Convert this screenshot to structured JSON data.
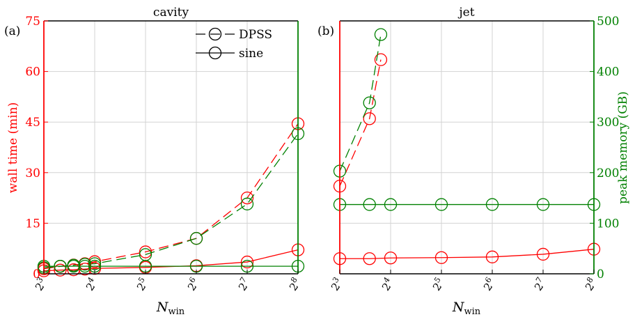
{
  "colors": {
    "wall_time": "#ff0000",
    "peak_memory": "#008000",
    "grid": "#d3d3d3",
    "axes": "#000000"
  },
  "chart_data": [
    {
      "type": "line",
      "panel_label": "(a)",
      "title": "cavity",
      "xlabel": "N",
      "xlabel_sub": "win",
      "ylabel_left": "wall time (min)",
      "ylabel_right": "",
      "xscale": "log2",
      "x_ticks": [
        8,
        16,
        32,
        64,
        128,
        256
      ],
      "x_tick_labels": [
        [
          "2",
          "3"
        ],
        [
          "2",
          "4"
        ],
        [
          "2",
          "5"
        ],
        [
          "2",
          "6"
        ],
        [
          "2",
          "7"
        ],
        [
          "2",
          "8"
        ]
      ],
      "ylim_left": [
        0,
        75
      ],
      "y_ticks_left": [
        0,
        15,
        30,
        45,
        60,
        75
      ],
      "y_tick_labels_left": [
        "0",
        "15",
        "30",
        "45",
        "60",
        "75"
      ],
      "ylim_right": [
        0,
        500
      ],
      "y_ticks_right": [],
      "y_tick_labels_right": [],
      "grid": true,
      "legend": {
        "position": "top-right",
        "entries": [
          {
            "label": "DPSS",
            "style": "dashed"
          },
          {
            "label": "sine",
            "style": "solid"
          }
        ]
      },
      "series": [
        {
          "metric": "wall_time",
          "method": "DPSS",
          "style": "dashed",
          "axis": "left",
          "x": [
            8,
            10,
            12,
            14,
            16,
            32,
            64,
            128,
            256
          ],
          "y": [
            1.5,
            2.2,
            2.6,
            3.0,
            3.6,
            6.5,
            10.5,
            22.5,
            44.5
          ]
        },
        {
          "metric": "peak_memory",
          "method": "DPSS",
          "style": "dashed",
          "axis": "right",
          "x": [
            8,
            10,
            12,
            14,
            16,
            32,
            64,
            128,
            256
          ],
          "y": [
            12,
            15,
            17,
            19,
            20,
            38,
            70,
            138,
            277
          ]
        },
        {
          "metric": "wall_time",
          "method": "sine",
          "style": "solid",
          "axis": "left",
          "x": [
            8,
            10,
            12,
            14,
            16,
            32,
            64,
            128,
            256
          ],
          "y": [
            0.9,
            1.1,
            1.2,
            1.4,
            1.6,
            1.9,
            2.4,
            3.5,
            7.1
          ]
        },
        {
          "metric": "peak_memory",
          "method": "sine",
          "style": "solid",
          "axis": "right",
          "x": [
            8,
            10,
            12,
            14,
            16,
            32,
            64,
            128,
            256
          ],
          "y": [
            15,
            15,
            15,
            15,
            15,
            15,
            15,
            15,
            15
          ]
        }
      ]
    },
    {
      "type": "line",
      "panel_label": "(b)",
      "title": "jet",
      "xlabel": "N",
      "xlabel_sub": "win",
      "ylabel_left": "",
      "ylabel_right": "peak memory (GB)",
      "xscale": "log2",
      "x_ticks": [
        8,
        16,
        32,
        64,
        128,
        256
      ],
      "x_tick_labels": [
        [
          "2",
          "3"
        ],
        [
          "2",
          "4"
        ],
        [
          "2",
          "5"
        ],
        [
          "2",
          "6"
        ],
        [
          "2",
          "7"
        ],
        [
          "2",
          "8"
        ]
      ],
      "ylim_left": [
        0,
        75
      ],
      "y_ticks_left": [],
      "y_tick_labels_left": [],
      "ylim_right": [
        0,
        500
      ],
      "y_ticks_right": [
        0,
        100,
        200,
        300,
        400,
        500
      ],
      "y_tick_labels_right": [
        "0",
        "100",
        "200",
        "300",
        "400",
        "500"
      ],
      "grid": true,
      "series": [
        {
          "metric": "wall_time",
          "method": "DPSS",
          "style": "dashed",
          "axis": "left",
          "x": [
            8,
            12,
            14,
            16
          ],
          "y": [
            26,
            46,
            63.5,
            null
          ]
        },
        {
          "metric": "peak_memory",
          "method": "DPSS",
          "style": "dashed",
          "axis": "right",
          "x": [
            8,
            12,
            14,
            16
          ],
          "y": [
            203,
            338,
            473,
            null
          ]
        },
        {
          "metric": "wall_time",
          "method": "sine",
          "style": "solid",
          "axis": "left",
          "x": [
            8,
            12,
            16,
            32,
            64,
            128,
            256
          ],
          "y": [
            4.5,
            4.5,
            4.7,
            4.8,
            5,
            5.8,
            7.3
          ]
        },
        {
          "metric": "peak_memory",
          "method": "sine",
          "style": "solid",
          "axis": "right",
          "x": [
            8,
            12,
            16,
            32,
            64,
            128,
            256
          ],
          "y": [
            137,
            137,
            137,
            137,
            137,
            137,
            137
          ]
        }
      ]
    }
  ]
}
